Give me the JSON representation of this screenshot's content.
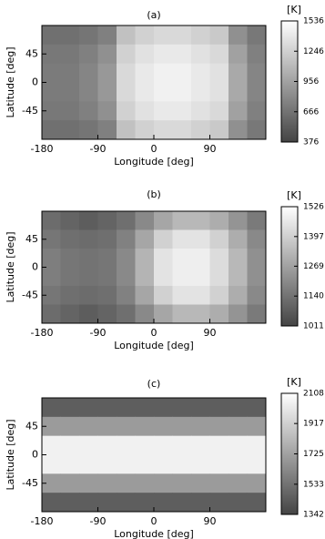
{
  "chart_data": [
    {
      "type": "heatmap",
      "title": "(a)",
      "colorbar_label": "[K]",
      "xlabel": "Longitude [deg]",
      "ylabel": "Latitude [deg]",
      "x": [
        -165,
        -135,
        -105,
        -75,
        -45,
        -15,
        15,
        45,
        75,
        105,
        135,
        165
      ],
      "y": [
        75,
        45,
        15,
        -15,
        -45,
        -75
      ],
      "z": [
        [
          650,
          650,
          680,
          750,
          1150,
          1250,
          1300,
          1300,
          1250,
          1200,
          850,
          700
        ],
        [
          700,
          700,
          750,
          850,
          1250,
          1350,
          1400,
          1400,
          1350,
          1300,
          950,
          750
        ],
        [
          720,
          720,
          780,
          900,
          1300,
          1400,
          1450,
          1450,
          1400,
          1350,
          1000,
          780
        ],
        [
          720,
          720,
          780,
          900,
          1300,
          1400,
          1450,
          1450,
          1400,
          1350,
          1000,
          780
        ],
        [
          700,
          700,
          750,
          850,
          1250,
          1350,
          1400,
          1400,
          1350,
          1300,
          950,
          750
        ],
        [
          650,
          650,
          680,
          750,
          1150,
          1250,
          1300,
          1300,
          1250,
          1200,
          850,
          700
        ]
      ],
      "xlim": [
        -180,
        180
      ],
      "ylim": [
        -90,
        90
      ],
      "xticks": [
        -180,
        -90,
        0,
        90
      ],
      "yticks": [
        -45,
        0,
        45
      ],
      "clim": [
        376,
        1536
      ],
      "cticks": [
        376,
        666,
        956,
        1246,
        1536
      ]
    },
    {
      "type": "heatmap",
      "title": "(b)",
      "colorbar_label": "[K]",
      "xlabel": "Longitude [deg]",
      "ylabel": "Latitude [deg]",
      "x": [
        -165,
        -135,
        -105,
        -75,
        -45,
        -15,
        15,
        45,
        75,
        105,
        135,
        165
      ],
      "y": [
        75,
        45,
        15,
        -15,
        -45,
        -75
      ],
      "z": [
        [
          1120,
          1100,
          1080,
          1100,
          1130,
          1200,
          1280,
          1330,
          1330,
          1300,
          1230,
          1160
        ],
        [
          1150,
          1130,
          1120,
          1130,
          1180,
          1280,
          1400,
          1450,
          1450,
          1400,
          1300,
          1200
        ],
        [
          1170,
          1150,
          1140,
          1150,
          1200,
          1320,
          1450,
          1480,
          1480,
          1430,
          1330,
          1220
        ],
        [
          1170,
          1150,
          1140,
          1150,
          1200,
          1320,
          1450,
          1480,
          1480,
          1430,
          1330,
          1220
        ],
        [
          1150,
          1130,
          1120,
          1130,
          1180,
          1280,
          1400,
          1450,
          1450,
          1400,
          1300,
          1200
        ],
        [
          1120,
          1100,
          1080,
          1100,
          1130,
          1200,
          1280,
          1330,
          1330,
          1300,
          1230,
          1160
        ]
      ],
      "xlim": [
        -180,
        180
      ],
      "ylim": [
        -90,
        90
      ],
      "xticks": [
        -180,
        -90,
        0,
        90
      ],
      "yticks": [
        -45,
        0,
        45
      ],
      "clim": [
        1011,
        1526
      ],
      "cticks": [
        1011,
        1140,
        1269,
        1397,
        1526
      ]
    },
    {
      "type": "heatmap",
      "title": "(c)",
      "colorbar_label": "[K]",
      "xlabel": "Longitude [deg]",
      "ylabel": "Latitude [deg]",
      "x": [
        -165,
        -135,
        -105,
        -75,
        -45,
        -15,
        15,
        45,
        75,
        105,
        135,
        165
      ],
      "y": [
        75,
        45,
        15,
        -15,
        -45,
        -75
      ],
      "z": [
        [
          1450,
          1450,
          1450,
          1450,
          1450,
          1450,
          1450,
          1450,
          1450,
          1450,
          1450,
          1450
        ],
        [
          1700,
          1700,
          1700,
          1700,
          1700,
          1700,
          1700,
          1700,
          1700,
          1700,
          1700,
          1700
        ],
        [
          2050,
          2050,
          2050,
          2050,
          2050,
          2050,
          2050,
          2050,
          2050,
          2050,
          2050,
          2050
        ],
        [
          2050,
          2050,
          2050,
          2050,
          2050,
          2050,
          2050,
          2050,
          2050,
          2050,
          2050,
          2050
        ],
        [
          1700,
          1700,
          1700,
          1700,
          1700,
          1700,
          1700,
          1700,
          1700,
          1700,
          1700,
          1700
        ],
        [
          1450,
          1450,
          1450,
          1450,
          1450,
          1450,
          1450,
          1450,
          1450,
          1450,
          1450,
          1450
        ]
      ],
      "xlim": [
        -180,
        180
      ],
      "ylim": [
        -90,
        90
      ],
      "xticks": [
        -180,
        -90,
        0,
        90
      ],
      "yticks": [
        -45,
        0,
        45
      ],
      "clim": [
        1342,
        2108
      ],
      "cticks": [
        1342,
        1533,
        1725,
        1917,
        2108
      ]
    }
  ]
}
